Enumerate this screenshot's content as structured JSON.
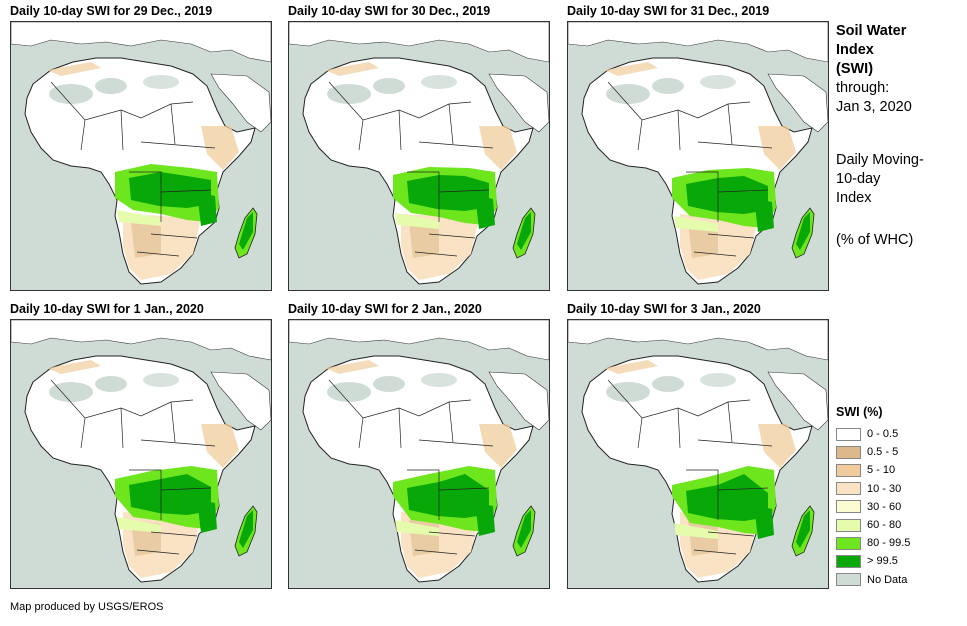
{
  "panels": [
    {
      "title": "Daily 10-day SWI for 29 Dec., 2019"
    },
    {
      "title": "Daily 10-day SWI for 30 Dec., 2019"
    },
    {
      "title": "Daily 10-day SWI for 31 Dec., 2019"
    },
    {
      "title": "Daily 10-day SWI for 1 Jan., 2020"
    },
    {
      "title": "Daily 10-day SWI for 2 Jan., 2020"
    },
    {
      "title": "Daily 10-day SWI for 3 Jan., 2020"
    }
  ],
  "sidebar": {
    "title_lines": [
      "Soil Water",
      "Index",
      "(SWI)"
    ],
    "through_label": "through:",
    "through_date": "Jan 3, 2020",
    "index_lines": [
      "Daily Moving-",
      "10-day",
      "Index"
    ],
    "units": "(% of WHC)"
  },
  "legend": {
    "title": "SWI (%)",
    "items": [
      {
        "label": "0 - 0.5",
        "color": "#ffffff"
      },
      {
        "label": "0.5 - 5",
        "color": "#dcb98a"
      },
      {
        "label": "5 - 10",
        "color": "#f0cc9c"
      },
      {
        "label": "10 - 30",
        "color": "#fae3c4"
      },
      {
        "label": "30 - 60",
        "color": "#fdfbd2"
      },
      {
        "label": "60 - 80",
        "color": "#e6fcad"
      },
      {
        "label": "80 - 99.5",
        "color": "#6ee61e"
      },
      {
        "label": "> 99.5",
        "color": "#08a808"
      },
      {
        "label": "No Data",
        "color": "#cfdcd6"
      }
    ]
  },
  "footer": "Map produced by USGS/EROS"
}
